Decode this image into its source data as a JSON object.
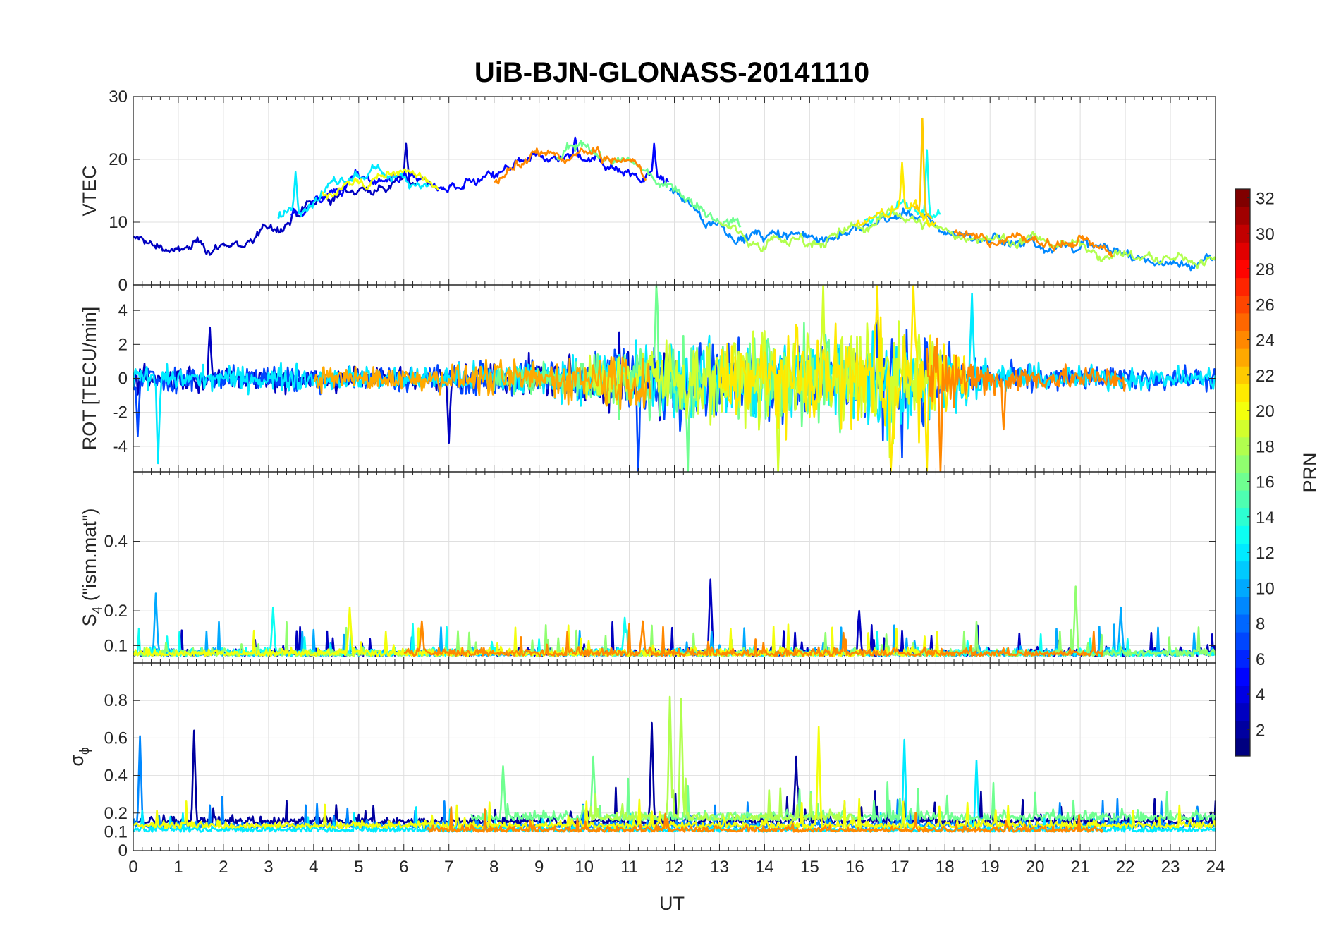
{
  "chart_data": {
    "type": "line",
    "title": "UiB-BJN-GLONASS-20141110",
    "xlabel": "UT",
    "xlim": [
      0,
      24
    ],
    "x_ticks": [
      "0",
      "1",
      "2",
      "3",
      "4",
      "5",
      "6",
      "7",
      "8",
      "9",
      "10",
      "11",
      "12",
      "13",
      "14",
      "15",
      "16",
      "17",
      "18",
      "19",
      "20",
      "21",
      "22",
      "23",
      "24"
    ],
    "grid": true,
    "panels": [
      {
        "id": "vtec",
        "ylabel": "VTEC",
        "ylim": [
          0,
          30
        ],
        "y_ticks": [
          "0",
          "10",
          "20",
          "30"
        ],
        "trend": [
          [
            0,
            8
          ],
          [
            1,
            6
          ],
          [
            2,
            6.5
          ],
          [
            3,
            9
          ],
          [
            4,
            13
          ],
          [
            5,
            16
          ],
          [
            6,
            17
          ],
          [
            7,
            14
          ],
          [
            8,
            16
          ],
          [
            9,
            19
          ],
          [
            10,
            20
          ],
          [
            11,
            18
          ],
          [
            12,
            15
          ],
          [
            13,
            10
          ],
          [
            14,
            8
          ],
          [
            15,
            8
          ],
          [
            16,
            9
          ],
          [
            17,
            12
          ],
          [
            18,
            9
          ],
          [
            19,
            8
          ],
          [
            20,
            7.5
          ],
          [
            21,
            7
          ],
          [
            22,
            5.5
          ],
          [
            23,
            4
          ],
          [
            24,
            4.5
          ]
        ],
        "series": [
          {
            "prn": 3,
            "start": 0,
            "end": 6.3,
            "base": 7.5,
            "spikes": [
              [
                6.05,
                22.5
              ]
            ]
          },
          {
            "prn": 5,
            "start": 3.5,
            "end": 11.9,
            "base": 13,
            "spikes": [
              [
                9.8,
                23.5
              ],
              [
                11.55,
                22.5
              ]
            ]
          },
          {
            "prn": 9,
            "start": 11.9,
            "end": 24,
            "base": 8,
            "spikes": []
          },
          {
            "prn": 12,
            "start": 3.2,
            "end": 6.6,
            "base": 14,
            "spikes": [
              [
                3.6,
                18
              ]
            ]
          },
          {
            "prn": 13,
            "start": 16.2,
            "end": 17.9,
            "base": 12,
            "spikes": [
              [
                17.6,
                21.5
              ]
            ]
          },
          {
            "prn": 16,
            "start": 9.4,
            "end": 13.5,
            "base": 14,
            "spikes": []
          },
          {
            "prn": 18,
            "start": 13,
            "end": 24,
            "base": 8,
            "spikes": []
          },
          {
            "prn": 20,
            "start": 4.2,
            "end": 6.8,
            "base": 13,
            "spikes": []
          },
          {
            "prn": 21,
            "start": 16,
            "end": 17.8,
            "base": 11,
            "spikes": [
              [
                17.05,
                19.5
              ]
            ]
          },
          {
            "prn": 22,
            "start": 17.3,
            "end": 17.7,
            "base": 15,
            "spikes": [
              [
                17.5,
                26.5
              ]
            ]
          },
          {
            "prn": 24,
            "start": 8,
            "end": 11.4,
            "base": 13,
            "spikes": [
              [
                10.3,
                22
              ]
            ]
          },
          {
            "prn": 24,
            "start": 18.2,
            "end": 21.7,
            "base": 8,
            "spikes": []
          }
        ]
      },
      {
        "id": "rot",
        "ylabel": "ROT [TECU/min]",
        "ylim": [
          -5.5,
          5.5
        ],
        "y_ticks": [
          "-4",
          "-2",
          "0",
          "2",
          "4"
        ],
        "envelope": [
          [
            0,
            1.3
          ],
          [
            1,
            1.1
          ],
          [
            2,
            1.0
          ],
          [
            3,
            1.2
          ],
          [
            4,
            1.2
          ],
          [
            5,
            1.0
          ],
          [
            6,
            1.1
          ],
          [
            7,
            1.2
          ],
          [
            8,
            1.5
          ],
          [
            9,
            1.7
          ],
          [
            10,
            2.0
          ],
          [
            11,
            3.2
          ],
          [
            12,
            3.8
          ],
          [
            13,
            3.2
          ],
          [
            14,
            4.0
          ],
          [
            15,
            4.0
          ],
          [
            16,
            4.2
          ],
          [
            17,
            5.5
          ],
          [
            18,
            3.0
          ],
          [
            19,
            1.4
          ],
          [
            20,
            1.2
          ],
          [
            21,
            1.1
          ],
          [
            22,
            1.0
          ],
          [
            23,
            1.0
          ],
          [
            24,
            1.0
          ]
        ],
        "series": [
          {
            "prn": 3,
            "start": 0,
            "end": 12,
            "base": 0,
            "spikes": [
              [
                1.7,
                3.0
              ],
              [
                7.0,
                -3.8
              ]
            ]
          },
          {
            "prn": 7,
            "start": 0,
            "end": 24,
            "base": 0,
            "spikes": [
              [
                0.1,
                -3.4
              ],
              [
                11.2,
                -5.5
              ]
            ]
          },
          {
            "prn": 12,
            "start": 0,
            "end": 24,
            "base": 0,
            "spikes": [
              [
                0.55,
                -5.0
              ],
              [
                18.6,
                5.0
              ]
            ]
          },
          {
            "prn": 16,
            "start": 8,
            "end": 16,
            "base": 0,
            "spikes": [
              [
                11.6,
                5.5
              ],
              [
                12.3,
                -5.5
              ]
            ]
          },
          {
            "prn": 19,
            "start": 10,
            "end": 18,
            "base": 0,
            "spikes": [
              [
                15.3,
                5.5
              ],
              [
                14.3,
                -5.5
              ]
            ]
          },
          {
            "prn": 21,
            "start": 13,
            "end": 18.5,
            "base": 0,
            "spikes": [
              [
                16.5,
                5.5
              ],
              [
                16.8,
                -5.5
              ],
              [
                17.3,
                5.5
              ],
              [
                17.6,
                -5.5
              ]
            ]
          },
          {
            "prn": 23,
            "start": 4,
            "end": 11.5,
            "base": 0,
            "spikes": []
          },
          {
            "prn": 24,
            "start": 17.6,
            "end": 22,
            "base": 0,
            "spikes": [
              [
                17.9,
                -5.5
              ],
              [
                19.3,
                -3.0
              ]
            ]
          }
        ]
      },
      {
        "id": "s4",
        "ylabel": "S",
        "ylabel_sub": "4",
        "ylabel_suffix": " (\"ism.mat\")",
        "ylim": [
          0.05,
          0.6
        ],
        "y_ticks": [
          "0.1",
          "0.2",
          "0.4"
        ],
        "y_tick_values": [
          0.1,
          0.2,
          0.4
        ],
        "series": [
          {
            "prn": 3,
            "start": 0,
            "end": 24,
            "base": 0.07,
            "spikes": [
              [
                12.8,
                0.29
              ],
              [
                16.1,
                0.2
              ]
            ]
          },
          {
            "prn": 10,
            "start": 0,
            "end": 24,
            "base": 0.07,
            "spikes": [
              [
                0.5,
                0.25
              ],
              [
                21.9,
                0.21
              ]
            ]
          },
          {
            "prn": 13,
            "start": 0,
            "end": 24,
            "base": 0.07,
            "spikes": [
              [
                3.1,
                0.21
              ],
              [
                10.9,
                0.18
              ]
            ]
          },
          {
            "prn": 17,
            "start": 0,
            "end": 24,
            "base": 0.07,
            "spikes": [
              [
                20.9,
                0.27
              ]
            ]
          },
          {
            "prn": 20,
            "start": 0,
            "end": 18,
            "base": 0.07,
            "spikes": [
              [
                4.8,
                0.21
              ]
            ]
          },
          {
            "prn": 24,
            "start": 6,
            "end": 21.5,
            "base": 0.07,
            "spikes": [
              [
                6.4,
                0.17
              ],
              [
                11.3,
                0.17
              ]
            ]
          }
        ]
      },
      {
        "id": "sigma",
        "ylabel": "σ",
        "ylabel_sub": "ϕ",
        "ylim": [
          0,
          1
        ],
        "y_ticks": [
          "0",
          "0.1",
          "0.2",
          "0.4",
          "0.6",
          "0.8"
        ],
        "y_tick_values": [
          0,
          0.1,
          0.2,
          0.4,
          0.6,
          0.8
        ],
        "series": [
          {
            "prn": 2,
            "start": 0,
            "end": 24,
            "base": 0.14,
            "spikes": [
              [
                1.35,
                0.64
              ],
              [
                11.5,
                0.68
              ],
              [
                14.7,
                0.5
              ]
            ]
          },
          {
            "prn": 9,
            "start": 0,
            "end": 24,
            "base": 0.12,
            "spikes": [
              [
                0.15,
                0.61
              ]
            ]
          },
          {
            "prn": 12,
            "start": 0,
            "end": 24,
            "base": 0.1,
            "spikes": [
              [
                17.1,
                0.59
              ],
              [
                18.7,
                0.48
              ]
            ]
          },
          {
            "prn": 16,
            "start": 7.5,
            "end": 24,
            "base": 0.16,
            "spikes": [
              [
                8.2,
                0.45
              ],
              [
                10.2,
                0.5
              ]
            ]
          },
          {
            "prn": 18,
            "start": 10,
            "end": 16,
            "base": 0.16,
            "spikes": [
              [
                11.9,
                0.82
              ],
              [
                12.15,
                0.81
              ]
            ]
          },
          {
            "prn": 20,
            "start": 0,
            "end": 24,
            "base": 0.12,
            "spikes": [
              [
                15.2,
                0.66
              ]
            ]
          },
          {
            "prn": 24,
            "start": 6.5,
            "end": 21.5,
            "base": 0.1,
            "spikes": []
          }
        ]
      }
    ],
    "colorbar": {
      "label": "PRN",
      "colormap": "jet",
      "range": [
        1,
        32
      ],
      "ticks": [
        "2",
        "4",
        "6",
        "8",
        "10",
        "12",
        "14",
        "16",
        "18",
        "20",
        "22",
        "24",
        "26",
        "28",
        "30",
        "32"
      ],
      "placement": "right"
    }
  }
}
